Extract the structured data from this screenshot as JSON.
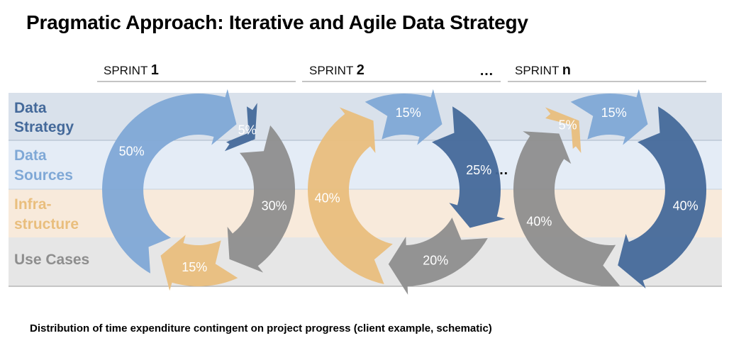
{
  "title": "Pragmatic Approach: Iterative and Agile Data Strategy",
  "caption": "Distribution of time expenditure contingent on project progress (client example, schematic)",
  "colors": {
    "data_strategy": "#44699A",
    "data_sources": "#7FA8D6",
    "infrastructure": "#E9BE7D",
    "use_cases": "#8E8E8E",
    "band_strategy": "#D9E1EB",
    "band_sources": "#E4ECF6",
    "band_infra": "#F8EADB",
    "band_use": "#E6E6E6"
  },
  "bands": [
    {
      "label_line1": "Data",
      "label_line2": "Strategy",
      "color": "#44699A"
    },
    {
      "label_line1": "Data",
      "label_line2": "Sources",
      "color": "#7FA8D6"
    },
    {
      "label_line1": "Infra-",
      "label_line2": "structure",
      "color": "#E9BE7D"
    },
    {
      "label_line1": "Use Cases",
      "label_line2": "",
      "color": "#8E8E8E"
    }
  ],
  "sprints": [
    {
      "prefix": "SPRINT ",
      "number": "1"
    },
    {
      "prefix": "SPRINT ",
      "number": "2"
    },
    {
      "prefix": "SPRINT ",
      "number": "n"
    }
  ],
  "header_ellipsis": "…",
  "mid_ellipsis": "…",
  "cycles": [
    {
      "sprint": "SPRINT 1",
      "segments": [
        {
          "category": "Data Strategy",
          "share": 5,
          "label": "5%"
        },
        {
          "category": "Use Cases",
          "share": 30,
          "label": "30%"
        },
        {
          "category": "Infrastructure",
          "share": 15,
          "label": "15%"
        },
        {
          "category": "Data Sources",
          "share": 50,
          "label": "50%"
        }
      ]
    },
    {
      "sprint": "SPRINT 2",
      "segments": [
        {
          "category": "Data Strategy",
          "share": 25,
          "label": "25%"
        },
        {
          "category": "Use Cases",
          "share": 20,
          "label": "20%"
        },
        {
          "category": "Infrastructure",
          "share": 40,
          "label": "40%"
        },
        {
          "category": "Data Sources",
          "share": 15,
          "label": "15%"
        }
      ]
    },
    {
      "sprint": "SPRINT n",
      "segments": [
        {
          "category": "Data Strategy",
          "share": 40,
          "label": "40%"
        },
        {
          "category": "Use Cases",
          "share": 40,
          "label": "40%"
        },
        {
          "category": "Infrastructure",
          "share": 5,
          "label": "5%"
        },
        {
          "category": "Data Sources",
          "share": 15,
          "label": "15%"
        }
      ]
    }
  ]
}
